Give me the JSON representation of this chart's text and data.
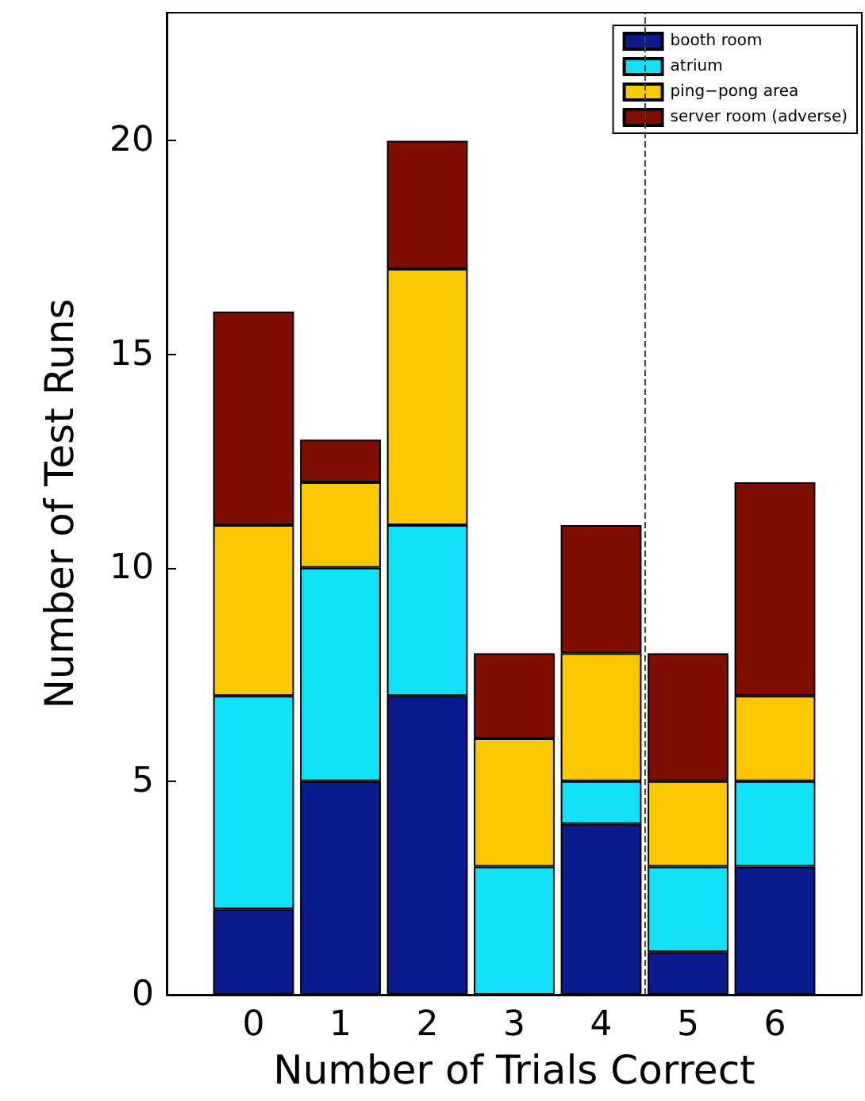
{
  "chart_data": {
    "type": "bar",
    "stacked": true,
    "xlabel": "Number of Trials Correct",
    "ylabel": "Number of Test Runs",
    "x": [
      0,
      1,
      2,
      3,
      4,
      5,
      6
    ],
    "xlim": [
      -1,
      7
    ],
    "xticks": [
      0,
      1,
      2,
      3,
      4,
      5,
      6
    ],
    "ylim": [
      0,
      23
    ],
    "yticks": [
      0,
      5,
      10,
      15,
      20
    ],
    "series": [
      {
        "name": "booth room",
        "color": "#0b1a8c",
        "values": [
          2,
          5,
          7,
          0,
          4,
          1,
          3
        ]
      },
      {
        "name": "atrium",
        "color": "#12e0f5",
        "values": [
          5,
          5,
          4,
          3,
          1,
          2,
          2
        ]
      },
      {
        "name": "ping−pong area",
        "color": "#f9c800",
        "values": [
          4,
          2,
          6,
          3,
          3,
          2,
          2
        ]
      },
      {
        "name": "server room (adverse)",
        "color": "#7f0e00",
        "values": [
          5,
          1,
          3,
          2,
          3,
          3,
          5
        ]
      }
    ],
    "ref_lines": [
      {
        "axis": "x",
        "value": 4.5,
        "line_style": "dashed",
        "color": "#444444"
      }
    ],
    "legend": "top right",
    "grid": false
  }
}
